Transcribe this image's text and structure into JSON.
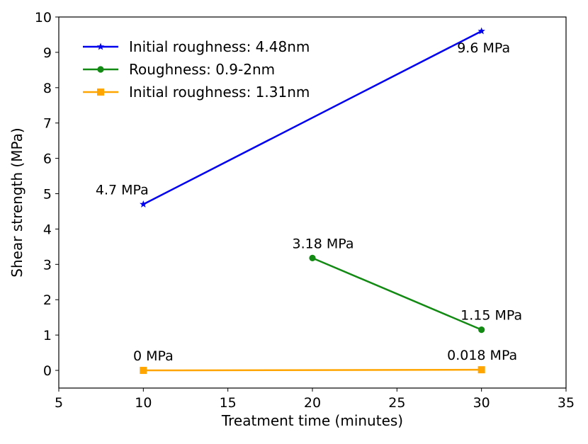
{
  "chart_data": {
    "type": "line",
    "title": "",
    "xlabel": "Treatment time (minutes)",
    "ylabel": "Shear strength (MPa)",
    "xlim": [
      5,
      35
    ],
    "ylim": [
      -0.5,
      10
    ],
    "xticks": [
      5,
      10,
      15,
      20,
      25,
      30,
      35
    ],
    "yticks": [
      0,
      1,
      2,
      3,
      4,
      5,
      6,
      7,
      8,
      9,
      10
    ],
    "grid": false,
    "legend_position": "top-left",
    "series": [
      {
        "name": "Initial roughness: 4.48nm",
        "color": "#0000ee",
        "marker": "star",
        "x": [
          10,
          30
        ],
        "y": [
          4.7,
          9.6
        ],
        "labels": [
          "4.7 MPa",
          "9.6 MPa"
        ]
      },
      {
        "name": "Roughness: 0.9-2nm",
        "color": "#138a13",
        "marker": "circle",
        "x": [
          20,
          30
        ],
        "y": [
          3.18,
          1.15
        ],
        "labels": [
          "3.18 MPa",
          "1.15 MPa"
        ]
      },
      {
        "name": "Initial roughness: 1.31nm",
        "color": "#ffa500",
        "marker": "square",
        "x": [
          10,
          30
        ],
        "y": [
          0,
          0.018
        ],
        "labels": [
          "0 MPa",
          "0.018 MPa"
        ]
      }
    ]
  }
}
